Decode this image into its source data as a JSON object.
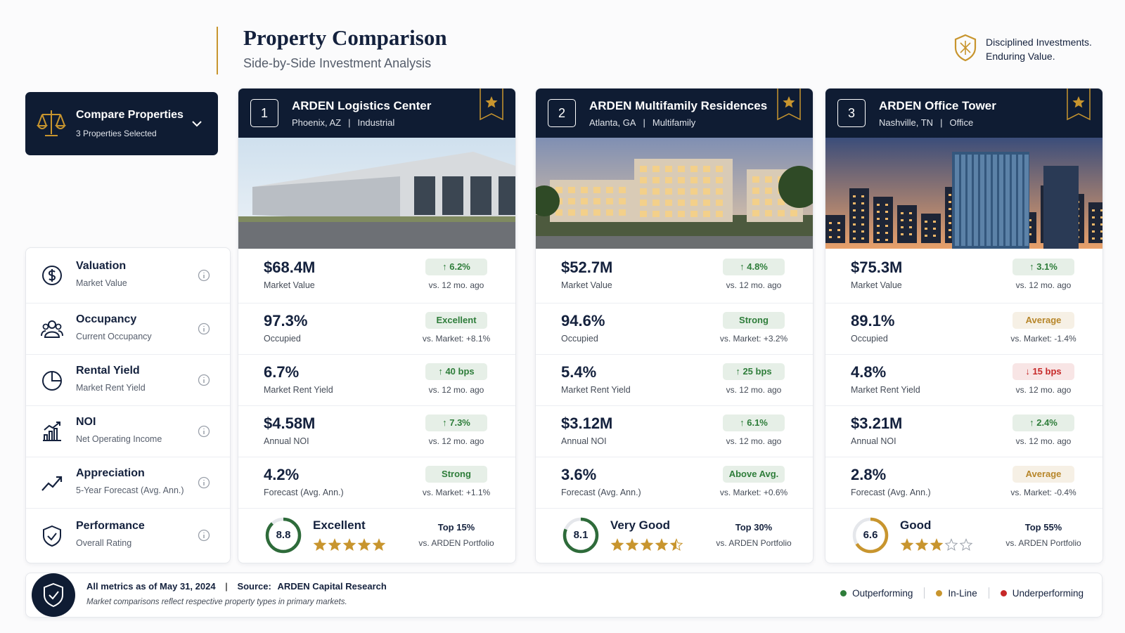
{
  "header": {
    "title": "Property Comparison",
    "subtitle": "Side-by-Side Investment Analysis",
    "tagline": [
      "Disciplined Investments.",
      "Enduring Value."
    ]
  },
  "selector": {
    "title": "Compare Properties",
    "subtitle": "3 Properties Selected"
  },
  "metrics": [
    {
      "name": "Valuation",
      "desc": "Market Value"
    },
    {
      "name": "Occupancy",
      "desc": "Current Occupancy"
    },
    {
      "name": "Rental Yield",
      "desc": "Market Rent Yield"
    },
    {
      "name": "NOI",
      "desc": "Net Operating Income"
    },
    {
      "name": "Appreciation",
      "desc": "5-Year Forecast (Avg. Ann.)"
    },
    {
      "name": "Performance",
      "desc": "Overall Rating"
    }
  ],
  "properties": [
    {
      "index": 1,
      "name": "ARDEN Logistics Center",
      "location": "Phoenix, AZ",
      "type": "Industrial",
      "rows": [
        {
          "value": "$68.4M",
          "label": "Market Value",
          "badge": "↑ 6.2%",
          "color": "#2e7d3a",
          "note": "vs. 12 mo. ago"
        },
        {
          "value": "97.3%",
          "label": "Occupied",
          "badge": "Excellent",
          "color": "#2e7d3a",
          "note": "vs. Market: +8.1%"
        },
        {
          "value": "6.7%",
          "label": "Market Rent Yield",
          "badge": "↑ 40 bps",
          "color": "#2e7d3a",
          "note": "vs. 12 mo. ago"
        },
        {
          "value": "$4.58M",
          "label": "Annual NOI",
          "badge": "↑ 7.3%",
          "color": "#2e7d3a",
          "note": "vs. 12 mo. ago"
        },
        {
          "value": "4.2%",
          "label": "Forecast (Avg. Ann.)",
          "badge": "Strong",
          "color": "#2e7d3a",
          "note": "vs. Market: +1.1%"
        }
      ],
      "performance": {
        "score": 8.8,
        "rating": "Excellent",
        "stars": 5,
        "rank": "Top 15%",
        "rank_note": "vs. ARDEN Portfolio",
        "color": "#2e6b3a"
      }
    },
    {
      "index": 2,
      "name": "ARDEN Multifamily Residences",
      "location": "Atlanta, GA",
      "type": "Multifamily",
      "rows": [
        {
          "value": "$52.7M",
          "label": "Market Value",
          "badge": "↑ 4.8%",
          "color": "#2e7d3a",
          "note": "vs. 12 mo. ago"
        },
        {
          "value": "94.6%",
          "label": "Occupied",
          "badge": "Strong",
          "color": "#2e7d3a",
          "note": "vs. Market: +3.2%"
        },
        {
          "value": "5.4%",
          "label": "Market Rent Yield",
          "badge": "↑ 25 bps",
          "color": "#2e7d3a",
          "note": "vs. 12 mo. ago"
        },
        {
          "value": "$3.12M",
          "label": "Annual NOI",
          "badge": "↑ 6.1%",
          "color": "#2e7d3a",
          "note": "vs. 12 mo. ago"
        },
        {
          "value": "3.6%",
          "label": "Forecast (Avg. Ann.)",
          "badge": "Above Avg.",
          "color": "#2e7d3a",
          "note": "vs. Market: +0.6%"
        }
      ],
      "performance": {
        "score": 8.1,
        "rating": "Very Good",
        "stars": 4.5,
        "rank": "Top 30%",
        "rank_note": "vs. ARDEN Portfolio",
        "color": "#2e6b3a"
      }
    },
    {
      "index": 3,
      "name": "ARDEN Office Tower",
      "location": "Nashville, TN",
      "type": "Office",
      "rows": [
        {
          "value": "$75.3M",
          "label": "Market Value",
          "badge": "↑ 3.1%",
          "color": "#2e7d3a",
          "note": "vs. 12 mo. ago"
        },
        {
          "value": "89.1%",
          "label": "Occupied",
          "badge": "Average",
          "color": "#b7862a",
          "note": "vs. Market: -1.4%"
        },
        {
          "value": "4.8%",
          "label": "Market Rent Yield",
          "badge": "↓ 15 bps",
          "color": "#c62828",
          "note": "vs. 12 mo. ago"
        },
        {
          "value": "$3.21M",
          "label": "Annual NOI",
          "badge": "↑ 2.4%",
          "color": "#2e7d3a",
          "note": "vs. 12 mo. ago"
        },
        {
          "value": "2.8%",
          "label": "Forecast (Avg. Ann.)",
          "badge": "Average",
          "color": "#b7862a",
          "note": "vs. Market: -0.4%"
        }
      ],
      "performance": {
        "score": 6.6,
        "rating": "Good",
        "stars": 3,
        "rank": "Top 55%",
        "rank_note": "vs. ARDEN Portfolio",
        "color": "#c8952e"
      }
    }
  ],
  "footer": {
    "asof": "All metrics as of May 31, 2024",
    "source_label": "Source:",
    "source": "ARDEN Capital Research",
    "note": "Market comparisons reflect respective property types in primary markets.",
    "legend": [
      {
        "label": "Outperforming",
        "color": "#2e7d3a"
      },
      {
        "label": "In-Line",
        "color": "#c8952e"
      },
      {
        "label": "Underperforming",
        "color": "#c62828"
      }
    ]
  }
}
